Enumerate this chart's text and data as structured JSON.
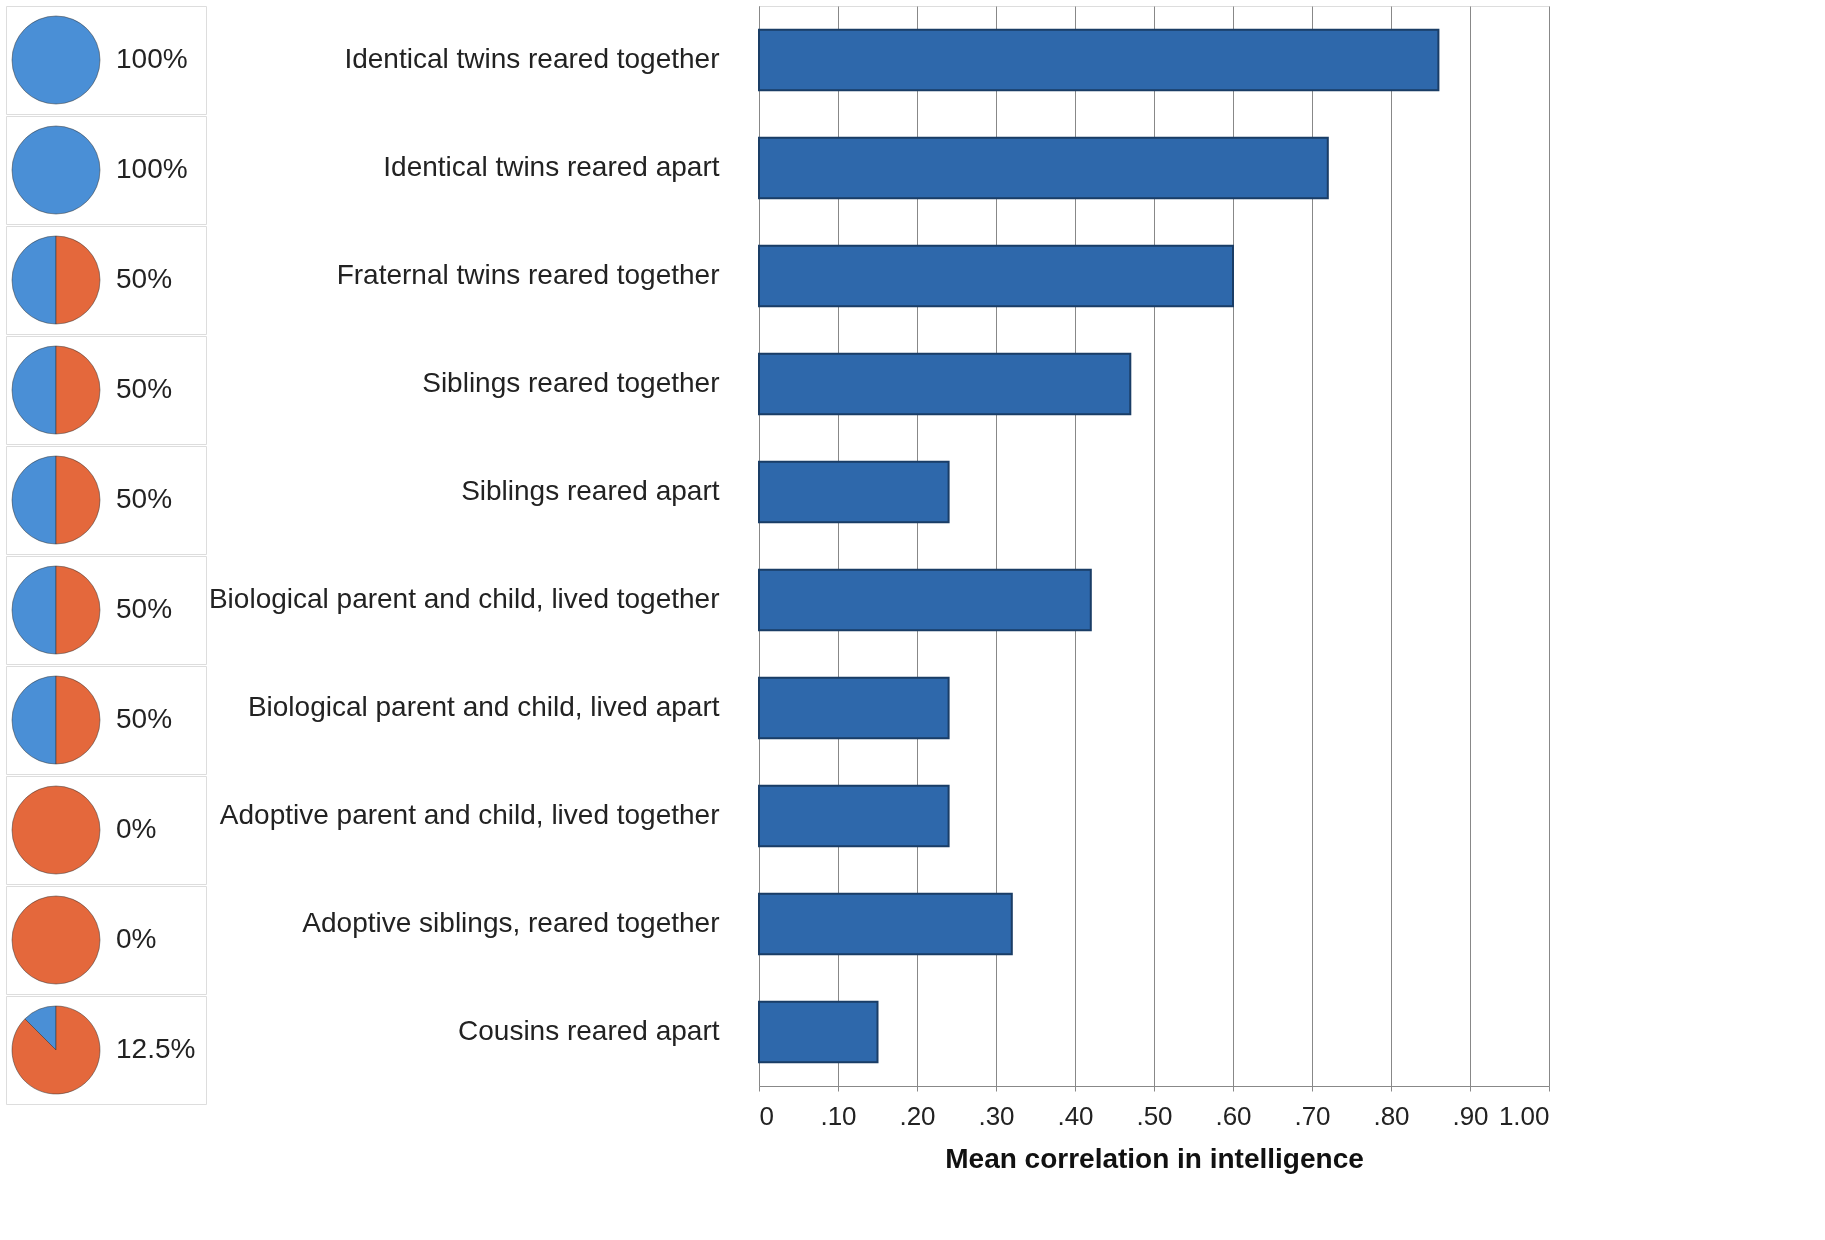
{
  "chart_data": [
    {
      "type": "pie",
      "values": [
        100,
        0
      ],
      "colors": [
        "#4a8fd6",
        "#e4683c"
      ],
      "annotations": [
        "100%"
      ]
    },
    {
      "type": "pie",
      "values": [
        100,
        0
      ],
      "colors": [
        "#4a8fd6",
        "#e4683c"
      ],
      "annotations": [
        "100%"
      ]
    },
    {
      "type": "pie",
      "values": [
        50,
        50
      ],
      "colors": [
        "#4a8fd6",
        "#e4683c"
      ],
      "annotations": [
        "50%"
      ]
    },
    {
      "type": "pie",
      "values": [
        50,
        50
      ],
      "colors": [
        "#4a8fd6",
        "#e4683c"
      ],
      "annotations": [
        "50%"
      ]
    },
    {
      "type": "pie",
      "values": [
        50,
        50
      ],
      "colors": [
        "#4a8fd6",
        "#e4683c"
      ],
      "annotations": [
        "50%"
      ]
    },
    {
      "type": "pie",
      "values": [
        50,
        50
      ],
      "colors": [
        "#4a8fd6",
        "#e4683c"
      ],
      "annotations": [
        "50%"
      ]
    },
    {
      "type": "pie",
      "values": [
        50,
        50
      ],
      "colors": [
        "#4a8fd6",
        "#e4683c"
      ],
      "annotations": [
        "50%"
      ]
    },
    {
      "type": "pie",
      "values": [
        0,
        100
      ],
      "colors": [
        "#4a8fd6",
        "#e4683c"
      ],
      "annotations": [
        "0%"
      ]
    },
    {
      "type": "pie",
      "values": [
        0,
        100
      ],
      "colors": [
        "#4a8fd6",
        "#e4683c"
      ],
      "annotations": [
        "0%"
      ]
    },
    {
      "type": "pie",
      "values": [
        12.5,
        87.5
      ],
      "colors": [
        "#4a8fd6",
        "#e4683c"
      ],
      "annotations": [
        "12.5%"
      ]
    },
    {
      "type": "bar",
      "orientation": "horizontal",
      "categories": [
        "Identical twins reared together",
        "Identical twins reared apart",
        "Fraternal twins reared together",
        "Siblings reared together",
        "Siblings reared apart",
        "Biological parent and child, lived together",
        "Biological parent and child, lived apart",
        "Adoptive parent and child, lived together",
        "Adoptive siblings, reared together",
        "Cousins reared apart"
      ],
      "values": [
        0.86,
        0.72,
        0.6,
        0.47,
        0.24,
        0.42,
        0.24,
        0.24,
        0.32,
        0.15
      ],
      "color": "#2e68ab",
      "xlim": [
        0,
        1.0
      ],
      "xticks": [
        {
          "value": 0,
          "label": "0"
        },
        {
          "value": 0.1,
          "label": ".10"
        },
        {
          "value": 0.2,
          "label": ".20"
        },
        {
          "value": 0.3,
          "label": ".30"
        },
        {
          "value": 0.4,
          "label": ".40"
        },
        {
          "value": 0.5,
          "label": ".50"
        },
        {
          "value": 0.6,
          "label": ".60"
        },
        {
          "value": 0.7,
          "label": ".70"
        },
        {
          "value": 0.8,
          "label": ".80"
        },
        {
          "value": 0.9,
          "label": ".90"
        },
        {
          "value": 1.0,
          "label": "1.00"
        }
      ],
      "xlabel": "Mean correlation in intelligence",
      "grid": "x"
    }
  ]
}
